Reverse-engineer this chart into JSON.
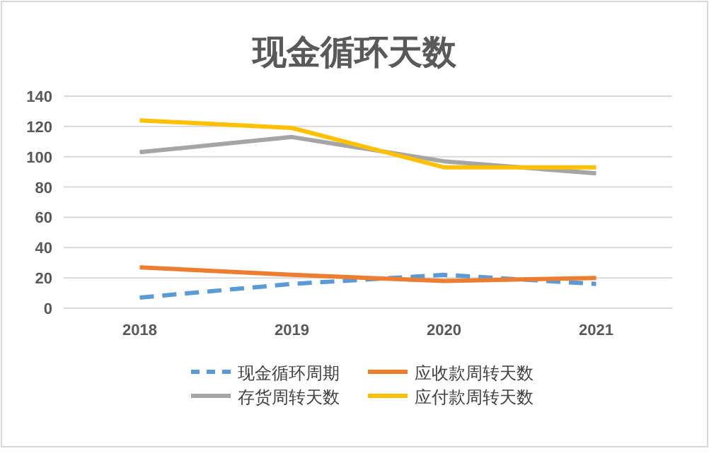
{
  "chart_data": {
    "type": "line",
    "title": "现金循环天数",
    "categories": [
      "2018",
      "2019",
      "2020",
      "2021"
    ],
    "series": [
      {
        "name": "现金循环周期",
        "color": "#5b9bd5",
        "values": [
          7,
          16,
          22,
          16
        ],
        "line_style": "dashed"
      },
      {
        "name": "应收款周转天数",
        "color": "#ed7d31",
        "values": [
          27,
          22,
          18,
          20
        ]
      },
      {
        "name": "存货周转天数",
        "color": "#a5a5a5",
        "values": [
          103,
          113,
          97,
          89
        ]
      },
      {
        "name": "应付款周转天数",
        "color": "#ffc000",
        "values": [
          124,
          119,
          93,
          93
        ]
      }
    ],
    "ylim": [
      0,
      140
    ],
    "yticks": [
      0,
      20,
      40,
      60,
      80,
      100,
      120,
      140
    ],
    "grid": "y",
    "legend": "bottom",
    "marker": "none"
  }
}
